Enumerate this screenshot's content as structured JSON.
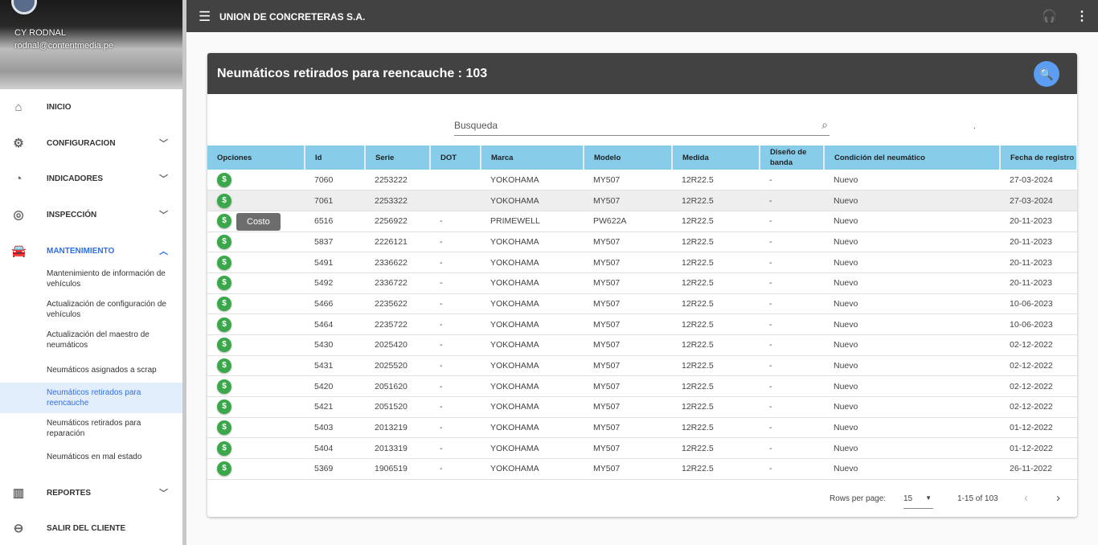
{
  "user": {
    "name": "CY RODNAL",
    "email": "rodnal@contentmedia.pe"
  },
  "nav": [
    {
      "label": "INICIO",
      "icon": "home-icon",
      "glyph": "⌂",
      "chev": ""
    },
    {
      "label": "CONFIGURACION",
      "icon": "gear-icon",
      "glyph": "⚙",
      "chev": "﹀"
    },
    {
      "label": "INDICADORES",
      "icon": "speedometer-icon",
      "glyph": "◔",
      "chev": "﹀"
    },
    {
      "label": "INSPECCIÓN",
      "icon": "tire-icon",
      "glyph": "◎",
      "chev": "﹀"
    },
    {
      "label": "MANTENIMIENTO",
      "icon": "car-icon",
      "glyph": "🚘",
      "chev": "︿"
    },
    {
      "label": "REPORTES",
      "icon": "bar-chart-icon",
      "glyph": "▥",
      "chev": "﹀"
    },
    {
      "label": "SALIR DEL CLIENTE",
      "icon": "exit-icon",
      "glyph": "⊖",
      "chev": ""
    }
  ],
  "subnav": [
    "Mantenimiento de información de vehículos",
    "Actualización de configuración de vehículos",
    "Actualización del maestro de neumáticos",
    "Neumáticos asignados a scrap",
    "Neumáticos retirados para reencauche",
    "Neumáticos retirados para reparación",
    "Neumáticos en mal estado"
  ],
  "topbar": {
    "title": "UNION DE CONCRETERAS S.A."
  },
  "card": {
    "title": "Neumáticos retirados para reencauche : 103",
    "search_placeholder": "Busqueda",
    "dot": "."
  },
  "columns": [
    "Opciones",
    "Id",
    "Serie",
    "DOT",
    "Marca",
    "Modelo",
    "Medida",
    "Diseño de banda",
    "Condición del neumático",
    "Fecha de registro"
  ],
  "rows": [
    [
      "7060",
      "2253222",
      "",
      "YOKOHAMA",
      "MY507",
      "12R22.5",
      "-",
      "Nuevo",
      "27-03-2024"
    ],
    [
      "7061",
      "2253322",
      "",
      "YOKOHAMA",
      "MY507",
      "12R22.5",
      "-",
      "Nuevo",
      "27-03-2024"
    ],
    [
      "6516",
      "2256922",
      "-",
      "PRIMEWELL",
      "PW622A",
      "12R22.5",
      "-",
      "Nuevo",
      "20-11-2023"
    ],
    [
      "5837",
      "2226121",
      "-",
      "YOKOHAMA",
      "MY507",
      "12R22.5",
      "-",
      "Nuevo",
      "20-11-2023"
    ],
    [
      "5491",
      "2336622",
      "-",
      "YOKOHAMA",
      "MY507",
      "12R22.5",
      "-",
      "Nuevo",
      "20-11-2023"
    ],
    [
      "5492",
      "2336722",
      "-",
      "YOKOHAMA",
      "MY507",
      "12R22.5",
      "-",
      "Nuevo",
      "20-11-2023"
    ],
    [
      "5466",
      "2235622",
      "-",
      "YOKOHAMA",
      "MY507",
      "12R22.5",
      "-",
      "Nuevo",
      "10-06-2023"
    ],
    [
      "5464",
      "2235722",
      "-",
      "YOKOHAMA",
      "MY507",
      "12R22.5",
      "-",
      "Nuevo",
      "10-06-2023"
    ],
    [
      "5430",
      "2025420",
      "-",
      "YOKOHAMA",
      "MY507",
      "12R22.5",
      "-",
      "Nuevo",
      "02-12-2022"
    ],
    [
      "5431",
      "2025520",
      "-",
      "YOKOHAMA",
      "MY507",
      "12R22.5",
      "-",
      "Nuevo",
      "02-12-2022"
    ],
    [
      "5420",
      "2051620",
      "-",
      "YOKOHAMA",
      "MY507",
      "12R22.5",
      "-",
      "Nuevo",
      "02-12-2022"
    ],
    [
      "5421",
      "2051520",
      "-",
      "YOKOHAMA",
      "MY507",
      "12R22.5",
      "-",
      "Nuevo",
      "02-12-2022"
    ],
    [
      "5403",
      "2013219",
      "-",
      "YOKOHAMA",
      "MY507",
      "12R22.5",
      "-",
      "Nuevo",
      "01-12-2022"
    ],
    [
      "5404",
      "2013319",
      "-",
      "YOKOHAMA",
      "MY507",
      "12R22.5",
      "-",
      "Nuevo",
      "01-12-2022"
    ],
    [
      "5369",
      "1906519",
      "-",
      "YOKOHAMA",
      "MY507",
      "12R22.5",
      "-",
      "Nuevo",
      "26-11-2022"
    ]
  ],
  "cost_symbol": "$",
  "tooltip": "Costo",
  "footer": {
    "rows_per_page_label": "Rows per page:",
    "rows_per_page": "15",
    "range": "1-15 of 103"
  },
  "colors": {
    "topbar": "#424242",
    "header": "#87cdea",
    "cost": "#3aa84a",
    "accent": "#2f6fe0",
    "fab": "#5b9df0"
  }
}
